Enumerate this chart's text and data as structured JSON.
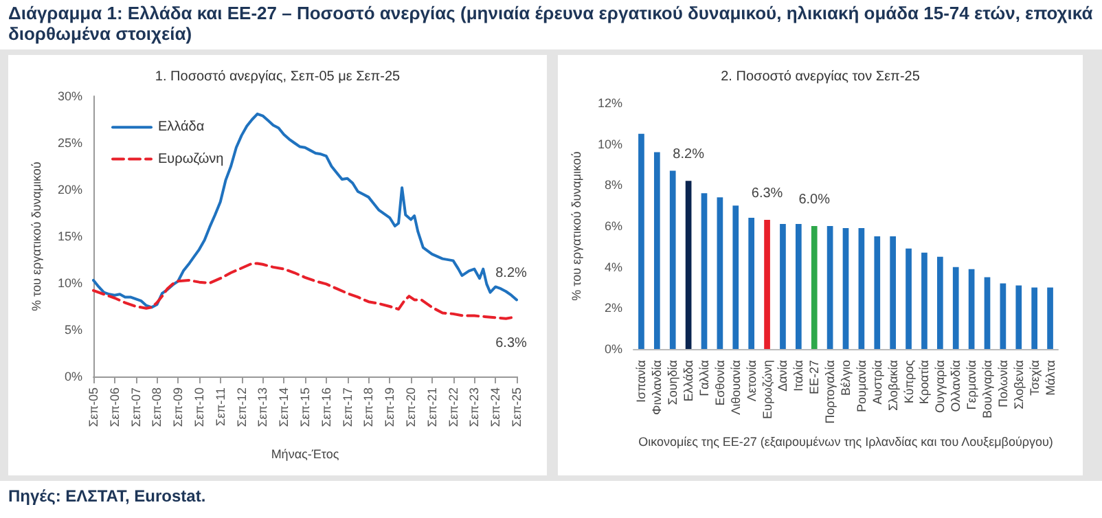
{
  "chart_data": [
    {
      "type": "line",
      "title": "Διάγραμμα 1: Ελλάδα και ΕΕ-27 – Ποσοστό ανεργίας (μηνιαία έρευνα εργατικού δυναμικού, ηλικιακή ομάδα 15-74 ετών, εποχικά διορθωμένα στοιχεία)",
      "subtitle": "1. Ποσοστό ανεργίας, Σεπ-05 με Σεπ-25",
      "xlabel": "Μήνας-Έτος",
      "ylabel": "% του εργατικού δυναμικού",
      "series": [
        {
          "name": "Ελλάδα",
          "color": "#1f72bf",
          "line_style": "solid",
          "x": [
            "2005-09",
            "2005-12",
            "2006-03",
            "2006-06",
            "2006-09",
            "2006-12",
            "2007-03",
            "2007-06",
            "2007-09",
            "2007-12",
            "2008-03",
            "2008-06",
            "2008-09",
            "2008-12",
            "2009-03",
            "2009-06",
            "2009-09",
            "2009-12",
            "2010-03",
            "2010-06",
            "2010-09",
            "2010-12",
            "2011-03",
            "2011-06",
            "2011-09",
            "2011-12",
            "2012-03",
            "2012-06",
            "2012-09",
            "2012-12",
            "2013-03",
            "2013-06",
            "2013-09",
            "2013-12",
            "2014-03",
            "2014-06",
            "2014-09",
            "2014-12",
            "2015-03",
            "2015-06",
            "2015-09",
            "2015-12",
            "2016-03",
            "2016-06",
            "2016-09",
            "2016-12",
            "2017-03",
            "2017-06",
            "2017-09",
            "2017-12",
            "2018-03",
            "2018-06",
            "2018-09",
            "2018-12",
            "2019-03",
            "2019-06",
            "2019-09",
            "2019-12",
            "2020-02",
            "2020-04",
            "2020-06",
            "2020-09",
            "2020-11",
            "2021-01",
            "2021-04",
            "2021-09",
            "2022-03",
            "2022-09",
            "2022-12",
            "2023-02",
            "2023-06",
            "2023-09",
            "2023-12",
            "2024-02",
            "2024-04",
            "2024-06",
            "2024-09",
            "2024-12",
            "2025-03",
            "2025-06",
            "2025-09"
          ],
          "values": [
            10.3,
            9.6,
            9.0,
            8.8,
            8.7,
            8.8,
            8.5,
            8.5,
            8.3,
            8.1,
            7.6,
            7.4,
            7.7,
            8.9,
            9.3,
            9.8,
            10.2,
            11.3,
            12.0,
            12.8,
            13.6,
            14.6,
            16.0,
            17.3,
            18.7,
            21.0,
            22.5,
            24.5,
            25.8,
            26.8,
            27.5,
            28.1,
            27.9,
            27.4,
            26.9,
            26.6,
            25.9,
            25.4,
            25.0,
            24.6,
            24.5,
            24.2,
            23.9,
            23.8,
            23.6,
            22.5,
            21.8,
            21.1,
            21.2,
            20.7,
            19.8,
            19.5,
            19.2,
            18.5,
            17.8,
            17.4,
            17.0,
            16.1,
            16.4,
            20.2,
            17.3,
            16.8,
            17.2,
            15.5,
            13.8,
            13.1,
            12.6,
            12.4,
            11.5,
            10.8,
            11.3,
            11.5,
            10.5,
            11.5,
            9.9,
            9.0,
            9.6,
            9.4,
            9.1,
            8.7,
            8.2
          ]
        },
        {
          "name": "Ευρωζώνη",
          "color": "#e8202a",
          "line_style": "dashed",
          "x": [
            "2005-09",
            "2006-03",
            "2006-09",
            "2007-03",
            "2007-09",
            "2008-03",
            "2008-06",
            "2008-09",
            "2008-12",
            "2009-03",
            "2009-06",
            "2009-09",
            "2010-03",
            "2010-09",
            "2011-03",
            "2011-09",
            "2012-03",
            "2012-09",
            "2013-03",
            "2013-06",
            "2013-09",
            "2014-03",
            "2014-09",
            "2015-03",
            "2015-09",
            "2016-03",
            "2016-09",
            "2017-03",
            "2017-09",
            "2018-03",
            "2018-09",
            "2019-03",
            "2019-09",
            "2020-02",
            "2020-05",
            "2020-08",
            "2020-11",
            "2021-03",
            "2021-09",
            "2022-03",
            "2022-09",
            "2023-03",
            "2023-09",
            "2024-03",
            "2024-09",
            "2025-03",
            "2025-06",
            "2025-09"
          ],
          "values": [
            9.2,
            8.8,
            8.4,
            7.9,
            7.5,
            7.3,
            7.4,
            7.9,
            8.6,
            9.4,
            9.9,
            10.2,
            10.3,
            10.1,
            10.0,
            10.5,
            11.1,
            11.6,
            12.1,
            12.1,
            12.0,
            11.7,
            11.5,
            11.1,
            10.6,
            10.2,
            9.9,
            9.4,
            8.9,
            8.5,
            8.0,
            7.8,
            7.5,
            7.2,
            8.0,
            8.6,
            8.2,
            8.2,
            7.4,
            6.8,
            6.7,
            6.5,
            6.5,
            6.4,
            6.3,
            6.2,
            6.3,
            6.3
          ]
        }
      ],
      "xlim": [
        "2005-09",
        "2025-09"
      ],
      "xticks": [
        {
          "value": "2005-09",
          "label": "Σεπ-05"
        },
        {
          "value": "2006-09",
          "label": "Σεπ-06"
        },
        {
          "value": "2007-09",
          "label": "Σεπ-07"
        },
        {
          "value": "2008-09",
          "label": "Σεπ-08"
        },
        {
          "value": "2009-09",
          "label": "Σεπ-09"
        },
        {
          "value": "2010-09",
          "label": "Σεπ-10"
        },
        {
          "value": "2011-09",
          "label": "Σεπ-11"
        },
        {
          "value": "2012-09",
          "label": "Σεπ-12"
        },
        {
          "value": "2013-09",
          "label": "Σεπ-13"
        },
        {
          "value": "2014-09",
          "label": "Σεπ-14"
        },
        {
          "value": "2015-09",
          "label": "Σεπ-15"
        },
        {
          "value": "2016-09",
          "label": "Σεπ-16"
        },
        {
          "value": "2017-09",
          "label": "Σεπ-17"
        },
        {
          "value": "2018-09",
          "label": "Σεπ-18"
        },
        {
          "value": "2019-09",
          "label": "Σεπ-19"
        },
        {
          "value": "2020-09",
          "label": "Σεπ-20"
        },
        {
          "value": "2021-09",
          "label": "Σεπ-21"
        },
        {
          "value": "2022-09",
          "label": "Σεπ-22"
        },
        {
          "value": "2023-09",
          "label": "Σεπ-23"
        },
        {
          "value": "2024-09",
          "label": "Σεπ-24"
        },
        {
          "value": "2025-09",
          "label": "Σεπ-25"
        }
      ],
      "ylim": [
        0,
        30
      ],
      "yticks": [
        {
          "value": 0,
          "label": "0%"
        },
        {
          "value": 5,
          "label": "5%"
        },
        {
          "value": 10,
          "label": "10%"
        },
        {
          "value": 15,
          "label": "15%"
        },
        {
          "value": 20,
          "label": "20%"
        },
        {
          "value": 25,
          "label": "25%"
        },
        {
          "value": 30,
          "label": "30%"
        }
      ],
      "legend": "top left",
      "annotations": [
        {
          "text": "8.2%",
          "x": "2025-09",
          "y": 8.2
        },
        {
          "text": "6.3%",
          "x": "2025-09",
          "y": 6.3
        },
        "Πηγές: ΕΛΣΤΑΤ, Eurostat."
      ]
    },
    {
      "type": "bar",
      "title": "2. Ποσοστό ανεργίας τον Σεπ-25",
      "xlabel": "Οικονομίες της ΕΕ-27 (εξαιρουμένων της Ιρλανδίας και του Λουξεμβούργου)",
      "ylabel": "% του εργατικού δυναμικού",
      "categories": [
        "Ισπανία",
        "Φινλανδία",
        "Σουηδία",
        "Ελλάδα",
        "Γαλλία",
        "Εσθονία",
        "Λιθουανία",
        "Λετονία",
        "Ευρωζώνη",
        "Δανία",
        "Ιταλία",
        "ΕΕ-27",
        "Πορτογαλία",
        "Βέλγιο",
        "Ρουμανία",
        "Αυστρία",
        "Σλοβακία",
        "Κύπρος",
        "Κροατία",
        "Ουγγαρία",
        "Ολλανδία",
        "Γερμανία",
        "Βουλγαρία",
        "Πολωνία",
        "Σλοβενία",
        "Τσεχία",
        "Μάλτα"
      ],
      "values": [
        10.5,
        9.6,
        8.7,
        8.2,
        7.6,
        7.4,
        7.0,
        6.4,
        6.3,
        6.1,
        6.1,
        6.0,
        6.0,
        5.9,
        5.9,
        5.5,
        5.5,
        4.9,
        4.7,
        4.5,
        4.0,
        3.9,
        3.5,
        3.2,
        3.1,
        3.0,
        3.0
      ],
      "colors": [
        "#1f72bf",
        "#1f72bf",
        "#1f72bf",
        "#0b2550",
        "#1f72bf",
        "#1f72bf",
        "#1f72bf",
        "#1f72bf",
        "#e8202a",
        "#1f72bf",
        "#1f72bf",
        "#2ea84a",
        "#1f72bf",
        "#1f72bf",
        "#1f72bf",
        "#1f72bf",
        "#1f72bf",
        "#1f72bf",
        "#1f72bf",
        "#1f72bf",
        "#1f72bf",
        "#1f72bf",
        "#1f72bf",
        "#1f72bf",
        "#1f72bf",
        "#1f72bf",
        "#1f72bf"
      ],
      "value_labels": [
        null,
        null,
        null,
        "8.2%",
        null,
        null,
        null,
        null,
        "6.3%",
        null,
        null,
        "6.0%",
        null,
        null,
        null,
        null,
        null,
        null,
        null,
        null,
        null,
        null,
        null,
        null,
        null,
        null,
        null
      ],
      "ylim": [
        0,
        12
      ],
      "yticks": [
        {
          "value": 0,
          "label": "0%"
        },
        {
          "value": 2,
          "label": "2%"
        },
        {
          "value": 4,
          "label": "4%"
        },
        {
          "value": 6,
          "label": "6%"
        },
        {
          "value": 8,
          "label": "8%"
        },
        {
          "value": 10,
          "label": "10%"
        },
        {
          "value": 12,
          "label": "12%"
        }
      ]
    }
  ]
}
